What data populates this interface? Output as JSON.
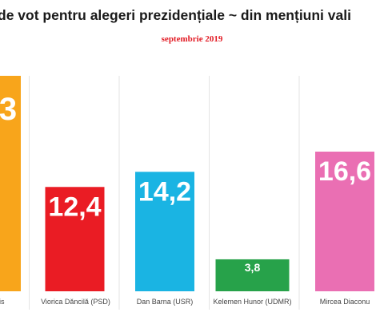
{
  "title": "de vot pentru alegeri prezidențiale ~ din mențiuni vali",
  "subtitle": "septembrie 2019",
  "chart_data": {
    "type": "bar",
    "ylim": [
      0,
      16.6
    ],
    "grid": "vertical separators",
    "series": [
      {
        "values": [
          null,
          12.4,
          14.2,
          3.8,
          16.6
        ],
        "value_labels": [
          "3",
          "12,4",
          "14,2",
          "3,8",
          "16,6"
        ]
      }
    ],
    "categories": [
      "is",
      "Viorica Dăncilă (PSD)",
      "Dan Barna (USR)",
      "Kelemen Hunor (UDMR)",
      "Mircea Diaconu"
    ],
    "colors": [
      "#f8a51b",
      "#ea1c24",
      "#1ab4e3",
      "#27a24a",
      "#ea6fb3"
    ],
    "note": "first bar is cut off at the top of the image"
  }
}
